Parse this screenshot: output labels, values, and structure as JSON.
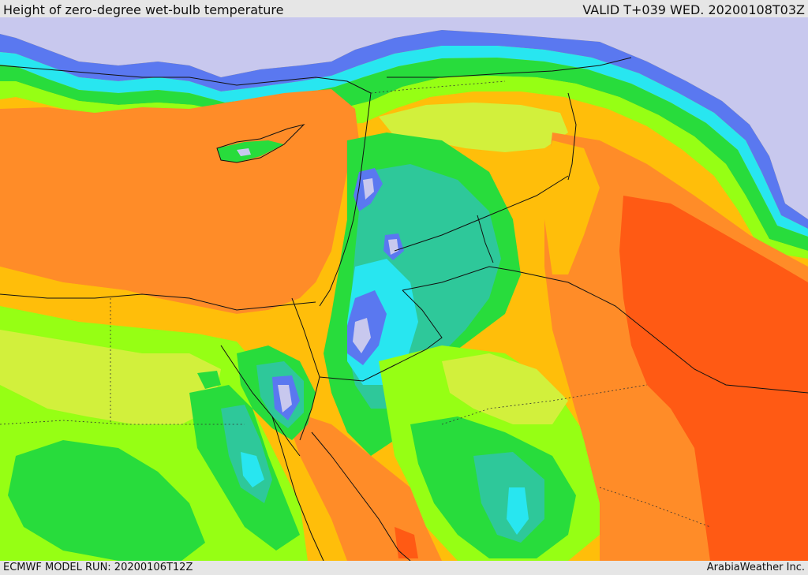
{
  "header": {
    "title": "Height of zero-degree wet-bulb temperature",
    "valid": "VALID T+039 WED. 20200108T03Z"
  },
  "footer": {
    "model_run": "ECMWF MODEL RUN: 20200106T12Z",
    "credit": "ArabiaWeather Inc."
  },
  "palette": {
    "very_low": "#c8c8ee",
    "low": "#5a78f0",
    "low_mid": "#28e6f0",
    "teal": "#2ec89a",
    "green": "#28dc3c",
    "lime": "#96ff14",
    "yellow_green": "#d2f03c",
    "yellow_orange": "#ffbe0a",
    "orange": "#ff8c28",
    "red_orange": "#ff5a14"
  }
}
